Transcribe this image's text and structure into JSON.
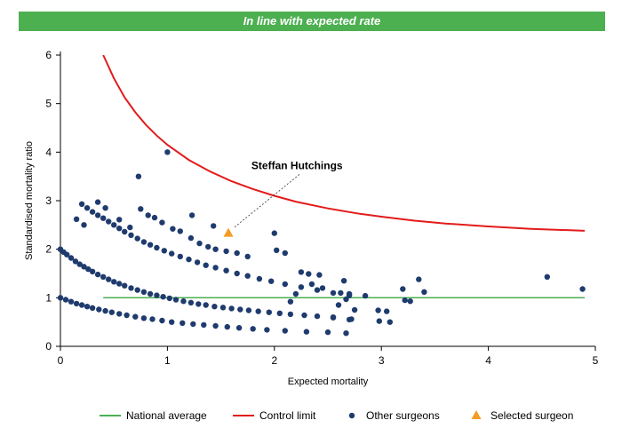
{
  "banner": {
    "text": "In line with expected rate",
    "color": "#4caf50"
  },
  "colors": {
    "national_average": "#4caf50",
    "control_limit": "#e31b1b",
    "other_surgeons": "#1f3b6e",
    "selected_surgeon": "#f39c24",
    "axis": "#000000"
  },
  "chart_data": {
    "type": "scatter",
    "xlabel": "Expected mortality",
    "ylabel": "Standardised mortality ratio",
    "xlim": [
      0,
      5
    ],
    "ylim": [
      0,
      6
    ],
    "xticks": [
      0,
      1,
      2,
      3,
      4,
      5
    ],
    "yticks": [
      0,
      1,
      2,
      3,
      4,
      5,
      6
    ],
    "grid": false,
    "legend_position": "bottom",
    "series": [
      {
        "name": "National average",
        "kind": "line",
        "x": [
          0.4,
          4.9
        ],
        "y": [
          1,
          1
        ]
      },
      {
        "name": "Control limit",
        "kind": "line",
        "x": [
          0.4,
          0.5,
          0.6,
          0.7,
          0.8,
          0.9,
          1.0,
          1.2,
          1.4,
          1.6,
          1.8,
          2.0,
          2.2,
          2.5,
          2.8,
          3.0,
          3.3,
          3.6,
          4.0,
          4.4,
          4.9
        ],
        "y": [
          6.0,
          5.52,
          5.13,
          4.82,
          4.56,
          4.34,
          4.15,
          3.84,
          3.6,
          3.4,
          3.24,
          3.1,
          2.98,
          2.84,
          2.73,
          2.67,
          2.59,
          2.53,
          2.47,
          2.42,
          2.38
        ]
      },
      {
        "name": "Other surgeons",
        "kind": "scatter",
        "points": [
          [
            0.0,
            2.0
          ],
          [
            0.03,
            1.94
          ],
          [
            0.06,
            1.89
          ],
          [
            0.1,
            1.82
          ],
          [
            0.14,
            1.75
          ],
          [
            0.18,
            1.69
          ],
          [
            0.22,
            1.64
          ],
          [
            0.26,
            1.59
          ],
          [
            0.3,
            1.54
          ],
          [
            0.35,
            1.48
          ],
          [
            0.4,
            1.43
          ],
          [
            0.45,
            1.38
          ],
          [
            0.5,
            1.33
          ],
          [
            0.55,
            1.29
          ],
          [
            0.6,
            1.25
          ],
          [
            0.66,
            1.2
          ],
          [
            0.72,
            1.16
          ],
          [
            0.78,
            1.12
          ],
          [
            0.84,
            1.08
          ],
          [
            0.9,
            1.05
          ],
          [
            0.96,
            1.02
          ],
          [
            1.02,
            0.99
          ],
          [
            1.08,
            0.96
          ],
          [
            1.15,
            0.93
          ],
          [
            1.22,
            0.9
          ],
          [
            1.29,
            0.87
          ],
          [
            1.36,
            0.85
          ],
          [
            1.44,
            0.82
          ],
          [
            1.52,
            0.8
          ],
          [
            1.6,
            0.78
          ],
          [
            1.68,
            0.76
          ],
          [
            1.76,
            0.74
          ],
          [
            1.85,
            0.72
          ],
          [
            1.95,
            0.7
          ],
          [
            2.05,
            0.68
          ],
          [
            2.15,
            0.66
          ],
          [
            2.28,
            0.64
          ],
          [
            2.4,
            0.62
          ],
          [
            2.55,
            0.59
          ],
          [
            2.72,
            0.56
          ],
          [
            0.0,
            1.0
          ],
          [
            0.05,
            0.96
          ],
          [
            0.1,
            0.92
          ],
          [
            0.15,
            0.88
          ],
          [
            0.2,
            0.85
          ],
          [
            0.25,
            0.82
          ],
          [
            0.3,
            0.79
          ],
          [
            0.36,
            0.76
          ],
          [
            0.42,
            0.73
          ],
          [
            0.48,
            0.7
          ],
          [
            0.55,
            0.67
          ],
          [
            0.62,
            0.64
          ],
          [
            0.7,
            0.61
          ],
          [
            0.78,
            0.58
          ],
          [
            0.86,
            0.56
          ],
          [
            0.95,
            0.53
          ],
          [
            1.04,
            0.5
          ],
          [
            1.14,
            0.48
          ],
          [
            1.24,
            0.46
          ],
          [
            1.34,
            0.44
          ],
          [
            1.45,
            0.42
          ],
          [
            1.56,
            0.4
          ],
          [
            1.67,
            0.38
          ],
          [
            1.8,
            0.36
          ],
          [
            1.93,
            0.34
          ],
          [
            2.1,
            0.32
          ],
          [
            2.3,
            0.3
          ],
          [
            2.5,
            0.29
          ],
          [
            2.67,
            0.27
          ],
          [
            0.2,
            2.93
          ],
          [
            0.25,
            2.85
          ],
          [
            0.3,
            2.77
          ],
          [
            0.35,
            2.7
          ],
          [
            0.4,
            2.64
          ],
          [
            0.45,
            2.57
          ],
          [
            0.5,
            2.5
          ],
          [
            0.55,
            2.43
          ],
          [
            0.6,
            2.36
          ],
          [
            0.66,
            2.29
          ],
          [
            0.72,
            2.22
          ],
          [
            0.78,
            2.15
          ],
          [
            0.84,
            2.09
          ],
          [
            0.9,
            2.03
          ],
          [
            0.97,
            1.97
          ],
          [
            1.04,
            1.91
          ],
          [
            1.12,
            1.85
          ],
          [
            1.2,
            1.79
          ],
          [
            1.28,
            1.73
          ],
          [
            1.36,
            1.67
          ],
          [
            1.45,
            1.62
          ],
          [
            1.55,
            1.56
          ],
          [
            1.65,
            1.5
          ],
          [
            1.75,
            1.45
          ],
          [
            1.86,
            1.39
          ],
          [
            1.97,
            1.34
          ],
          [
            2.1,
            1.28
          ],
          [
            2.25,
            1.22
          ],
          [
            2.4,
            1.16
          ],
          [
            2.55,
            1.1
          ],
          [
            2.7,
            1.05
          ],
          [
            0.15,
            2.62
          ],
          [
            0.22,
            2.5
          ],
          [
            0.35,
            2.97
          ],
          [
            0.42,
            2.85
          ],
          [
            0.55,
            2.61
          ],
          [
            0.65,
            2.45
          ],
          [
            0.75,
            2.83
          ],
          [
            0.82,
            2.7
          ],
          [
            0.88,
            2.65
          ],
          [
            0.95,
            2.55
          ],
          [
            1.05,
            2.42
          ],
          [
            1.12,
            2.37
          ],
          [
            1.22,
            2.23
          ],
          [
            1.3,
            2.12
          ],
          [
            1.38,
            2.05
          ],
          [
            1.45,
            2.0
          ],
          [
            1.55,
            1.96
          ],
          [
            1.65,
            1.92
          ],
          [
            1.75,
            1.85
          ],
          [
            1.0,
            4.0
          ],
          [
            0.73,
            3.5
          ],
          [
            1.23,
            2.7
          ],
          [
            1.43,
            2.48
          ],
          [
            2.0,
            2.33
          ],
          [
            2.02,
            1.98
          ],
          [
            2.1,
            1.92
          ],
          [
            2.25,
            1.53
          ],
          [
            2.32,
            1.49
          ],
          [
            2.42,
            1.47
          ],
          [
            2.35,
            1.28
          ],
          [
            2.45,
            1.2
          ],
          [
            2.65,
            1.35
          ],
          [
            2.62,
            1.1
          ],
          [
            2.7,
            1.08
          ],
          [
            2.85,
            1.04
          ],
          [
            2.67,
            0.97
          ],
          [
            2.75,
            0.75
          ],
          [
            2.97,
            0.74
          ],
          [
            3.05,
            0.72
          ],
          [
            2.98,
            0.52
          ],
          [
            3.08,
            0.5
          ],
          [
            3.2,
            1.18
          ],
          [
            3.22,
            0.95
          ],
          [
            3.27,
            0.93
          ],
          [
            3.35,
            1.38
          ],
          [
            3.4,
            1.12
          ],
          [
            4.55,
            1.43
          ],
          [
            4.88,
            1.18
          ],
          [
            2.6,
            0.85
          ],
          [
            2.7,
            0.55
          ],
          [
            2.55,
            0.6
          ],
          [
            2.15,
            0.92
          ],
          [
            2.2,
            1.08
          ]
        ]
      },
      {
        "name": "Selected surgeon",
        "kind": "scatter",
        "points": [
          [
            1.57,
            2.33
          ]
        ]
      }
    ],
    "annotations": [
      {
        "text": "Steffan Hutchings",
        "target": [
          1.57,
          2.33
        ],
        "text_at": [
          2.3,
          3.65
        ]
      }
    ],
    "legend": [
      "National average",
      "Control limit",
      "Other surgeons",
      "Selected surgeon"
    ]
  }
}
